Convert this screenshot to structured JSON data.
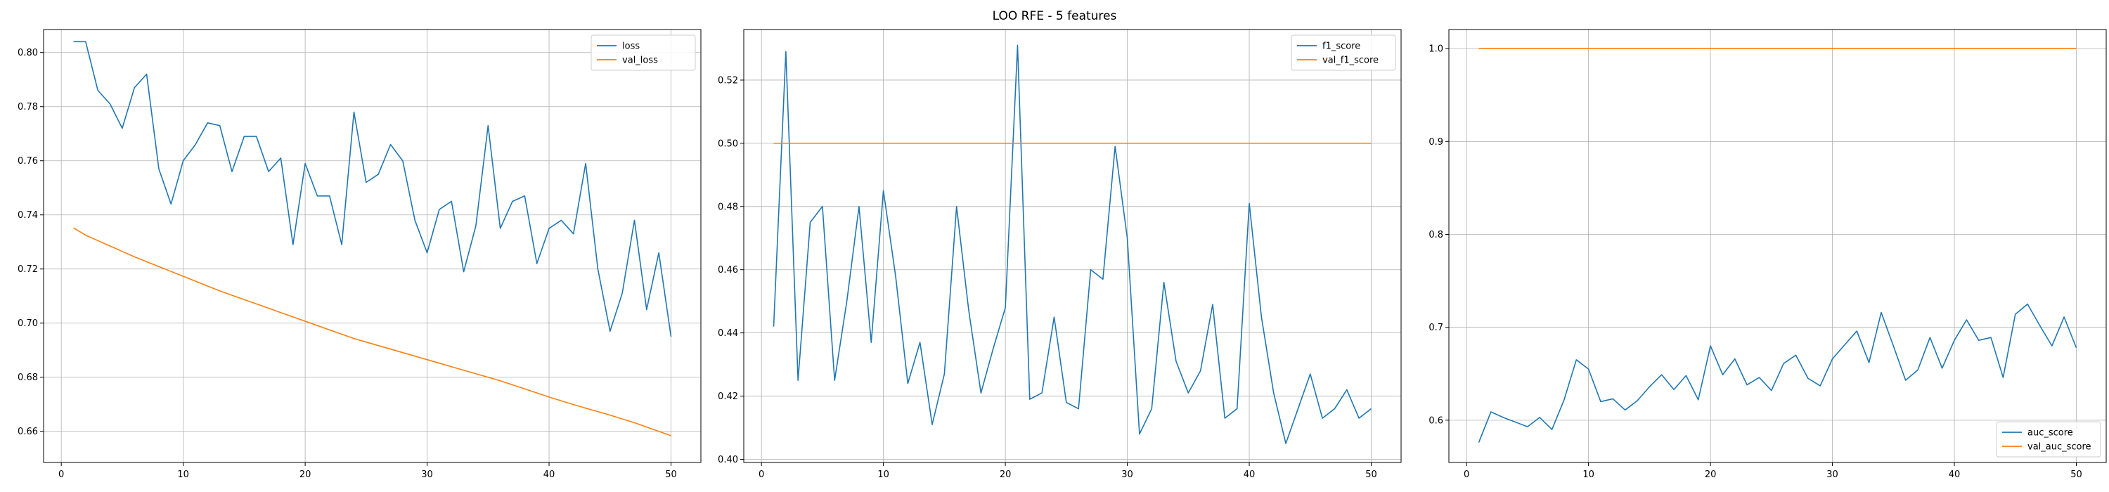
{
  "title": "LOO RFE - 5 features",
  "colors": {
    "series1": "#1f77b4",
    "series2": "#ff7f0e",
    "grid": "#b0b0b0"
  },
  "chart_data": [
    {
      "type": "line",
      "grid": true,
      "legend_position": "upper right",
      "xlim": [
        -1.45,
        52.45
      ],
      "ylim": [
        0.6485,
        0.8085
      ],
      "xticks": [
        0,
        10,
        20,
        30,
        40,
        50
      ],
      "xtick_labels": [
        "0",
        "10",
        "20",
        "30",
        "40",
        "50"
      ],
      "yticks": [
        0.66,
        0.68,
        0.7,
        0.72,
        0.74,
        0.76,
        0.78,
        0.8
      ],
      "ytick_labels": [
        "0.66",
        "0.68",
        "0.70",
        "0.72",
        "0.74",
        "0.76",
        "0.78",
        "0.80"
      ],
      "x": [
        1,
        2,
        3,
        4,
        5,
        6,
        7,
        8,
        9,
        10,
        11,
        12,
        13,
        14,
        15,
        16,
        17,
        18,
        19,
        20,
        21,
        22,
        23,
        24,
        25,
        26,
        27,
        28,
        29,
        30,
        31,
        32,
        33,
        34,
        35,
        36,
        37,
        38,
        39,
        40,
        41,
        42,
        43,
        44,
        45,
        46,
        47,
        48,
        49,
        50
      ],
      "series": [
        {
          "name": "loss",
          "color": "#1f77b4",
          "values": [
            0.804,
            0.804,
            0.786,
            0.781,
            0.772,
            0.787,
            0.792,
            0.757,
            0.744,
            0.76,
            0.766,
            0.774,
            0.773,
            0.756,
            0.769,
            0.769,
            0.756,
            0.761,
            0.729,
            0.759,
            0.747,
            0.747,
            0.729,
            0.778,
            0.752,
            0.755,
            0.766,
            0.76,
            0.738,
            0.726,
            0.742,
            0.745,
            0.719,
            0.736,
            0.773,
            0.735,
            0.745,
            0.747,
            0.722,
            0.735,
            0.738,
            0.733,
            0.759,
            0.72,
            0.697,
            0.711,
            0.738,
            0.705,
            0.726,
            0.695
          ]
        },
        {
          "name": "val_loss",
          "color": "#ff7f0e",
          "values": [
            0.7352,
            0.7325,
            0.7305,
            0.7285,
            0.7265,
            0.7245,
            0.7227,
            0.7209,
            0.7191,
            0.7173,
            0.7155,
            0.7137,
            0.7119,
            0.7103,
            0.7087,
            0.7071,
            0.7055,
            0.7039,
            0.7023,
            0.7007,
            0.6991,
            0.6975,
            0.6959,
            0.6943,
            0.693,
            0.6917,
            0.6904,
            0.6891,
            0.6878,
            0.6865,
            0.6852,
            0.6839,
            0.6826,
            0.6813,
            0.68,
            0.6787,
            0.6772,
            0.6757,
            0.6742,
            0.6727,
            0.6713,
            0.6699,
            0.6686,
            0.6673,
            0.666,
            0.6646,
            0.6632,
            0.6616,
            0.66,
            0.6584
          ]
        }
      ]
    },
    {
      "type": "line",
      "grid": true,
      "legend_position": "upper right",
      "xlim": [
        -1.45,
        52.45
      ],
      "ylim": [
        0.399,
        0.536
      ],
      "xticks": [
        0,
        10,
        20,
        30,
        40,
        50
      ],
      "xtick_labels": [
        "0",
        "10",
        "20",
        "30",
        "40",
        "50"
      ],
      "yticks": [
        0.4,
        0.42,
        0.44,
        0.46,
        0.48,
        0.5,
        0.52
      ],
      "ytick_labels": [
        "0.40",
        "0.42",
        "0.44",
        "0.46",
        "0.48",
        "0.50",
        "0.52"
      ],
      "x": [
        1,
        2,
        3,
        4,
        5,
        6,
        7,
        8,
        9,
        10,
        11,
        12,
        13,
        14,
        15,
        16,
        17,
        18,
        19,
        20,
        21,
        22,
        23,
        24,
        25,
        26,
        27,
        28,
        29,
        30,
        31,
        32,
        33,
        34,
        35,
        36,
        37,
        38,
        39,
        40,
        41,
        42,
        43,
        44,
        45,
        46,
        47,
        48,
        49,
        50
      ],
      "series": [
        {
          "name": "f1_score",
          "color": "#1f77b4",
          "values": [
            0.442,
            0.529,
            0.425,
            0.475,
            0.48,
            0.425,
            0.45,
            0.48,
            0.437,
            0.485,
            0.458,
            0.424,
            0.437,
            0.411,
            0.427,
            0.48,
            0.447,
            0.421,
            0.435,
            0.448,
            0.531,
            0.419,
            0.421,
            0.445,
            0.418,
            0.416,
            0.46,
            0.457,
            0.499,
            0.47,
            0.408,
            0.416,
            0.456,
            0.431,
            0.421,
            0.428,
            0.449,
            0.413,
            0.416,
            0.481,
            0.445,
            0.421,
            0.405,
            0.416,
            0.427,
            0.413,
            0.416,
            0.422,
            0.413,
            0.416
          ]
        },
        {
          "name": "val_f1_score",
          "color": "#ff7f0e",
          "values": [
            0.5,
            0.5,
            0.5,
            0.5,
            0.5,
            0.5,
            0.5,
            0.5,
            0.5,
            0.5,
            0.5,
            0.5,
            0.5,
            0.5,
            0.5,
            0.5,
            0.5,
            0.5,
            0.5,
            0.5,
            0.5,
            0.5,
            0.5,
            0.5,
            0.5,
            0.5,
            0.5,
            0.5,
            0.5,
            0.5,
            0.5,
            0.5,
            0.5,
            0.5,
            0.5,
            0.5,
            0.5,
            0.5,
            0.5,
            0.5,
            0.5,
            0.5,
            0.5,
            0.5,
            0.5,
            0.5,
            0.5,
            0.5,
            0.5,
            0.5
          ]
        }
      ]
    },
    {
      "type": "line",
      "grid": true,
      "legend_position": "lower right",
      "xlim": [
        -1.45,
        52.45
      ],
      "ylim": [
        0.5545,
        1.0205
      ],
      "xticks": [
        0,
        10,
        20,
        30,
        40,
        50
      ],
      "xtick_labels": [
        "0",
        "10",
        "20",
        "30",
        "40",
        "50"
      ],
      "yticks": [
        0.6,
        0.7,
        0.8,
        0.9,
        1.0
      ],
      "ytick_labels": [
        "0.6",
        "0.7",
        "0.8",
        "0.9",
        "1.0"
      ],
      "x": [
        1,
        2,
        3,
        4,
        5,
        6,
        7,
        8,
        9,
        10,
        11,
        12,
        13,
        14,
        15,
        16,
        17,
        18,
        19,
        20,
        21,
        22,
        23,
        24,
        25,
        26,
        27,
        28,
        29,
        30,
        31,
        32,
        33,
        34,
        35,
        36,
        37,
        38,
        39,
        40,
        41,
        42,
        43,
        44,
        45,
        46,
        47,
        48,
        49,
        50
      ],
      "series": [
        {
          "name": "auc_score",
          "color": "#1f77b4",
          "values": [
            0.576,
            0.609,
            0.603,
            0.598,
            0.593,
            0.603,
            0.59,
            0.622,
            0.665,
            0.655,
            0.62,
            0.623,
            0.611,
            0.621,
            0.636,
            0.649,
            0.633,
            0.648,
            0.622,
            0.68,
            0.649,
            0.666,
            0.638,
            0.646,
            0.632,
            0.661,
            0.67,
            0.645,
            0.637,
            0.666,
            0.681,
            0.696,
            0.662,
            0.716,
            0.68,
            0.643,
            0.654,
            0.689,
            0.656,
            0.686,
            0.708,
            0.686,
            0.689,
            0.646,
            0.714,
            0.725,
            0.702,
            0.68,
            0.711,
            0.678
          ]
        },
        {
          "name": "val_auc_score",
          "color": "#ff7f0e",
          "values": [
            1.0,
            1.0,
            1.0,
            1.0,
            1.0,
            1.0,
            1.0,
            1.0,
            1.0,
            1.0,
            1.0,
            1.0,
            1.0,
            1.0,
            1.0,
            1.0,
            1.0,
            1.0,
            1.0,
            1.0,
            1.0,
            1.0,
            1.0,
            1.0,
            1.0,
            1.0,
            1.0,
            1.0,
            1.0,
            1.0,
            1.0,
            1.0,
            1.0,
            1.0,
            1.0,
            1.0,
            1.0,
            1.0,
            1.0,
            1.0,
            1.0,
            1.0,
            1.0,
            1.0,
            1.0,
            1.0,
            1.0,
            1.0,
            1.0,
            1.0
          ]
        }
      ]
    }
  ]
}
